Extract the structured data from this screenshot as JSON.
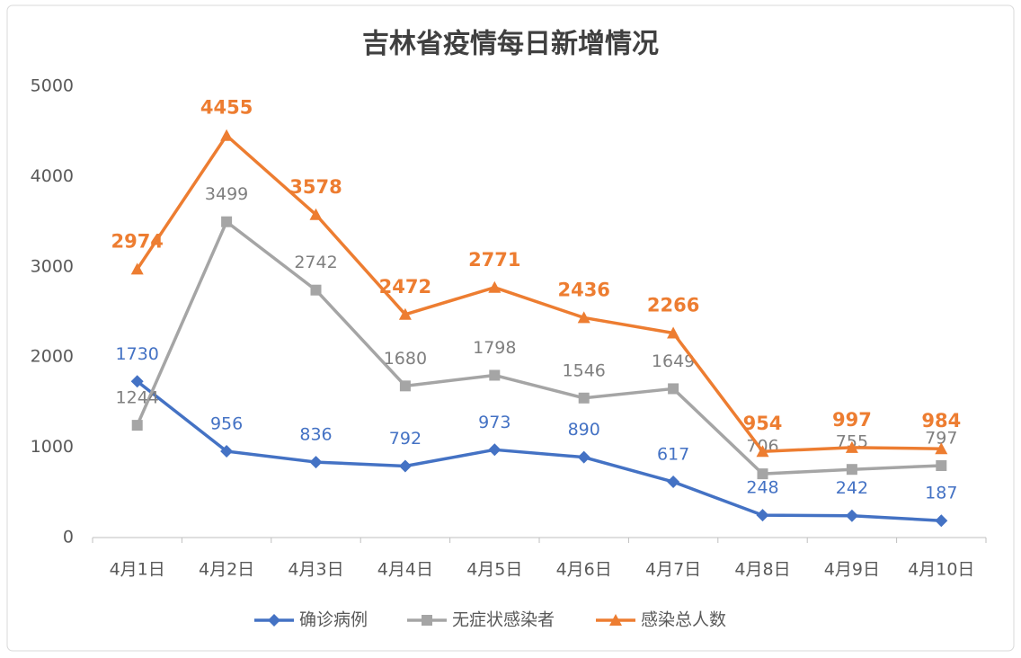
{
  "chart_data": {
    "type": "line",
    "title": "吉林省疫情每日新增情况",
    "categories": [
      "4月1日",
      "4月2日",
      "4月3日",
      "4月4日",
      "4月5日",
      "4月6日",
      "4月7日",
      "4月8日",
      "4月9日",
      "4月10日"
    ],
    "series": [
      {
        "name": "确诊病例",
        "color": "#4472c4",
        "marker": "diamond",
        "values": [
          1730,
          956,
          836,
          792,
          973,
          890,
          617,
          248,
          242,
          187
        ]
      },
      {
        "name": "无症状感染者",
        "color": "#a5a5a5",
        "marker": "square",
        "values": [
          1244,
          3499,
          2742,
          1680,
          1798,
          1546,
          1649,
          706,
          755,
          797
        ]
      },
      {
        "name": "感染总人数",
        "color": "#ed7d31",
        "marker": "triangle",
        "values": [
          2974,
          4455,
          3578,
          2472,
          2771,
          2436,
          2266,
          954,
          997,
          984
        ]
      }
    ],
    "ylim": [
      0,
      5000
    ],
    "yticks": [
      0,
      1000,
      2000,
      3000,
      4000,
      5000
    ],
    "grid": false,
    "legend": "bottom"
  }
}
